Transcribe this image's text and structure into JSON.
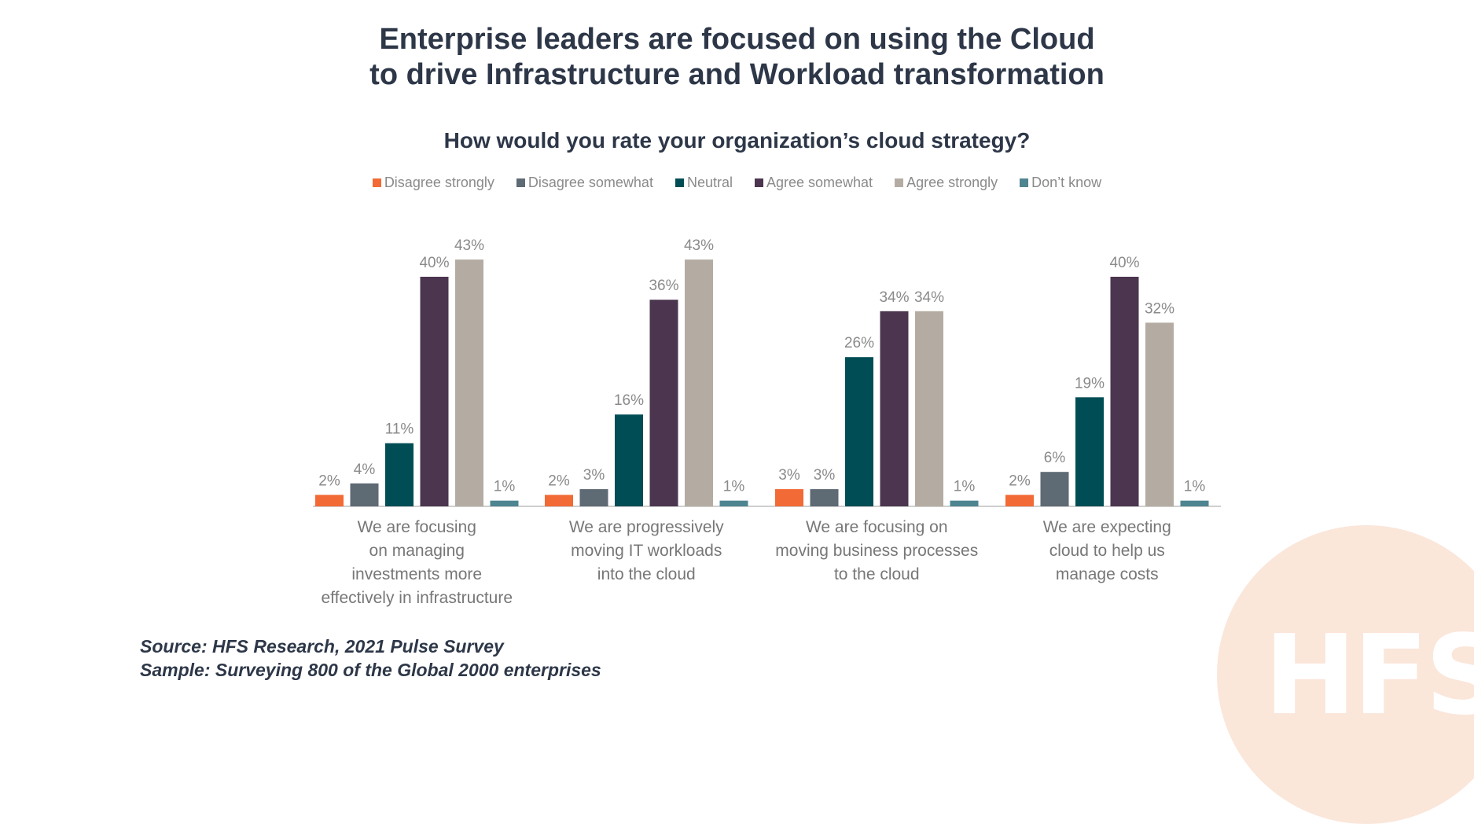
{
  "title": {
    "line1": "Enterprise leaders are focused on using the Cloud",
    "line2": "to drive Infrastructure and Workload transformation"
  },
  "source": {
    "line1": "Source: HFS Research, 2021 Pulse Survey",
    "line2": "Sample: Surveying 800 of the Global 2000 enterprises"
  },
  "logo": {
    "text": "HFS"
  },
  "colors": {
    "text_dark": "#2d3748",
    "label_gray": "#8a8a8a",
    "axis": "#bfbfbf",
    "decor": "#fbe6da"
  },
  "chart_data": {
    "type": "bar",
    "title": "How would you rate your organization’s cloud strategy?",
    "xlabel": "",
    "ylabel": "",
    "ylim": [
      0,
      50
    ],
    "grid": false,
    "legend_position": "top",
    "value_suffix": "%",
    "categories": [
      [
        "We are focusing",
        "on managing",
        "investments more",
        "effectively in infrastructure"
      ],
      [
        "We are progressively",
        "moving IT workloads",
        "into the cloud"
      ],
      [
        "We are focusing on",
        "moving business processes",
        "to the cloud"
      ],
      [
        "We are expecting",
        "cloud to help us",
        "manage costs"
      ]
    ],
    "series": [
      {
        "name": "Disagree strongly",
        "color": "#f26a35",
        "values": [
          2,
          2,
          3,
          2
        ]
      },
      {
        "name": "Disagree somewhat",
        "color": "#5e6a74",
        "values": [
          4,
          3,
          3,
          6
        ]
      },
      {
        "name": "Neutral",
        "color": "#004d55",
        "values": [
          11,
          16,
          26,
          19
        ]
      },
      {
        "name": "Agree somewhat",
        "color": "#4b354f",
        "values": [
          40,
          36,
          34,
          40
        ]
      },
      {
        "name": "Agree strongly",
        "color": "#b4aca2",
        "values": [
          43,
          43,
          34,
          32
        ]
      },
      {
        "name": "Don’t know",
        "color": "#4e8590",
        "values": [
          1,
          1,
          1,
          1
        ]
      }
    ]
  }
}
